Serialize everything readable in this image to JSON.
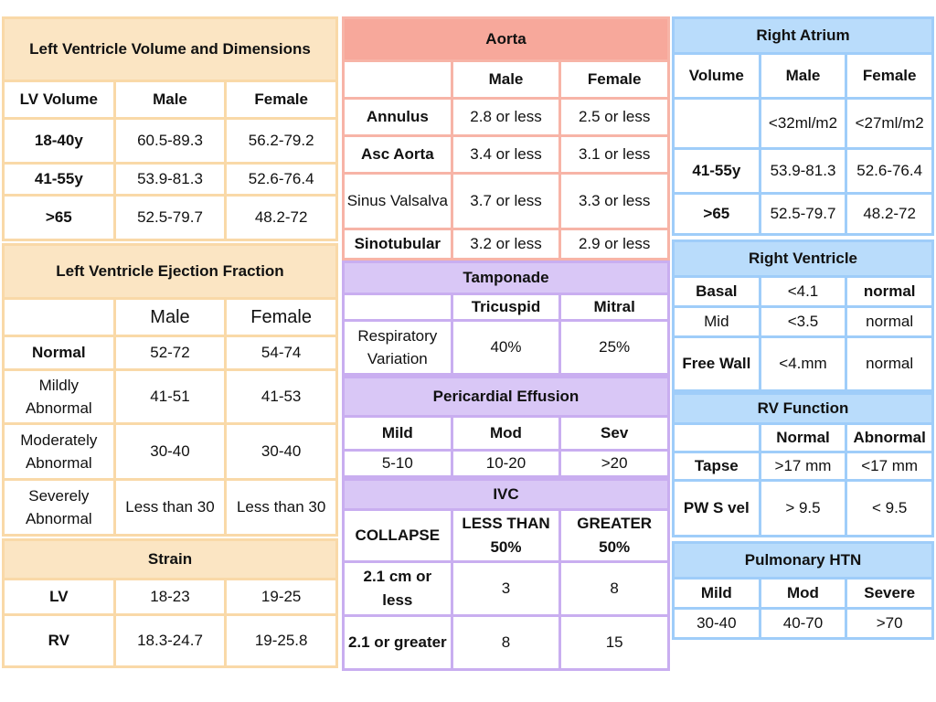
{
  "lv_volume": {
    "title": "Left Ventricle Volume and Dimensions",
    "headers": [
      "LV Volume",
      "Male",
      "Female"
    ],
    "rows": [
      [
        "18-40y",
        "60.5-89.3",
        "56.2-79.2"
      ],
      [
        "41-55y",
        "53.9-81.3",
        "52.6-76.4"
      ],
      [
        ">65",
        "52.5-79.7",
        "48.2-72"
      ]
    ]
  },
  "lvef": {
    "title": "Left Ventricle Ejection Fraction",
    "headers": [
      "",
      "Male",
      "Female"
    ],
    "rows": [
      [
        "Normal",
        "52-72",
        "54-74"
      ],
      [
        "Mildly Abnormal",
        "41-51",
        "41-53"
      ],
      [
        "Moderately Abnormal",
        "30-40",
        "30-40"
      ],
      [
        "Severely Abnormal",
        "Less than 30",
        "Less than 30"
      ]
    ]
  },
  "strain": {
    "title": "Strain",
    "rows": [
      [
        "LV",
        "18-23",
        "19-25"
      ],
      [
        "RV",
        "18.3-24.7",
        "19-25.8"
      ]
    ]
  },
  "aorta": {
    "title": "Aorta",
    "headers": [
      "",
      "Male",
      "Female"
    ],
    "rows": [
      [
        "Annulus",
        "2.8 or less",
        "2.5 or less"
      ],
      [
        "Asc Aorta",
        "3.4 or less",
        "3.1 or less"
      ],
      [
        "Sinus Valsalva",
        "3.7 or less",
        "3.3 or less"
      ],
      [
        "Sinotubular",
        "3.2 or less",
        "2.9 or less"
      ]
    ]
  },
  "tamponade": {
    "title": "Tamponade",
    "headers": [
      "",
      "Tricuspid",
      "Mitral"
    ],
    "rows": [
      [
        "Respiratory Variation",
        "40%",
        "25%"
      ]
    ]
  },
  "pericardial": {
    "title": "Pericardial Effusion",
    "headers": [
      "Mild",
      "Mod",
      "Sev"
    ],
    "rows": [
      [
        "5-10",
        "10-20",
        ">20"
      ]
    ]
  },
  "ivc": {
    "title": "IVC",
    "headers": [
      "COLLAPSE",
      "LESS THAN 50%",
      "GREATER 50%"
    ],
    "rows": [
      [
        "2.1 cm or less",
        "3",
        "8"
      ],
      [
        "2.1 or greater",
        "8",
        "15"
      ]
    ]
  },
  "right_atrium": {
    "title": "Right Atrium",
    "headers": [
      "Volume",
      "Male",
      "Female"
    ],
    "rows": [
      [
        "",
        "<32ml/m2",
        "<27ml/m2"
      ],
      [
        "41-55y",
        "53.9-81.3",
        "52.6-76.4"
      ],
      [
        ">65",
        "52.5-79.7",
        "48.2-72"
      ]
    ]
  },
  "right_ventricle": {
    "title": "Right Ventricle",
    "rows": [
      [
        "Basal",
        "<4.1",
        "normal"
      ],
      [
        "Mid",
        "<3.5",
        "normal"
      ],
      [
        "Free Wall",
        "<4.mm",
        "normal"
      ]
    ]
  },
  "rv_function": {
    "title": "RV Function",
    "headers": [
      "",
      "Normal",
      "Abnormal"
    ],
    "rows": [
      [
        "Tapse",
        ">17  mm",
        "<17  mm"
      ],
      [
        "PW S vel",
        "> 9.5",
        "< 9.5"
      ]
    ]
  },
  "pulm_htn": {
    "title": "Pulmonary HTN",
    "headers": [
      "Mild",
      "Mod",
      "Severe"
    ],
    "rows": [
      [
        "30-40",
        "40-70",
        ">70"
      ]
    ]
  }
}
